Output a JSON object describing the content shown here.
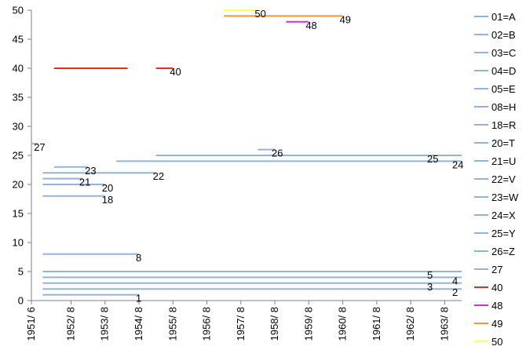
{
  "chart_data": {
    "type": "line",
    "x_ticks": [
      "1951/ 6",
      "1952/ 8",
      "1953/ 8",
      "1954/ 8",
      "1955/ 8",
      "1956/ 8",
      "1957/ 8",
      "1958/ 8",
      "1959/ 8",
      "1960/ 8",
      "1961/ 8",
      "1962/ 8",
      "1963/ 8"
    ],
    "x_range": [
      "1951-06",
      "1964-02"
    ],
    "ylim": [
      0,
      50
    ],
    "y_ticks": [
      0,
      5,
      10,
      15,
      20,
      25,
      30,
      35,
      40,
      45,
      50
    ],
    "grid": false,
    "legend_position": "right",
    "colors": {
      "default": "#95b3d7",
      "40": "#e0301e",
      "48": "#cc33cc",
      "49": "#f0963c",
      "50": "#ffff66"
    },
    "series": [
      {
        "name": "01=A",
        "legend": true,
        "label": "1",
        "y": 1,
        "segments": [
          [
            "1951-10",
            "1954-08"
          ]
        ]
      },
      {
        "name": "02=B",
        "legend": true,
        "label": "2",
        "y": 2,
        "segments": [
          [
            "1951-10",
            "1964-02"
          ]
        ]
      },
      {
        "name": "03=C",
        "legend": true,
        "label": "3",
        "y": 3,
        "segments": [
          [
            "1951-10",
            "1964-02"
          ]
        ]
      },
      {
        "name": "04=D",
        "legend": true,
        "label": "4",
        "y": 4,
        "segments": [
          [
            "1951-10",
            "1964-02"
          ]
        ]
      },
      {
        "name": "05=E",
        "legend": true,
        "label": "5",
        "y": 5,
        "segments": [
          [
            "1951-10",
            "1964-02"
          ]
        ]
      },
      {
        "name": "08=H",
        "legend": true,
        "label": "8",
        "y": 8,
        "segments": [
          [
            "1951-10",
            "1954-08"
          ]
        ]
      },
      {
        "name": "18=R",
        "legend": true,
        "label": "18",
        "y": 18,
        "segments": [
          [
            "1951-10",
            "1953-08"
          ]
        ]
      },
      {
        "name": "20=T",
        "legend": true,
        "label": "20",
        "y": 20,
        "segments": [
          [
            "1951-10",
            "1953-08"
          ]
        ]
      },
      {
        "name": "21=U",
        "legend": true,
        "label": "21",
        "y": 21,
        "segments": [
          [
            "1951-10",
            "1952-12"
          ]
        ]
      },
      {
        "name": "22=V",
        "legend": true,
        "label": "22",
        "y": 22,
        "segments": [
          [
            "1951-10",
            "1955-02"
          ]
        ]
      },
      {
        "name": "23=W",
        "legend": true,
        "label": "23",
        "y": 23,
        "segments": [
          [
            "1952-02",
            "1953-02"
          ]
        ]
      },
      {
        "name": "24=X",
        "legend": true,
        "label": "24",
        "y": 24,
        "segments": [
          [
            "1953-12",
            "1964-02"
          ]
        ]
      },
      {
        "name": "25=Y",
        "legend": true,
        "label": "25",
        "y": 25,
        "segments": [
          [
            "1955-02",
            "1964-02"
          ]
        ]
      },
      {
        "name": "26=Z",
        "legend": true,
        "label": "26",
        "y": 26,
        "segments": [
          [
            "1958-02",
            "1958-08"
          ]
        ]
      },
      {
        "name": "27",
        "legend": true,
        "label": "27",
        "y": 27,
        "segments": [
          [
            "1951-06",
            "1951-08"
          ]
        ]
      },
      {
        "name": "40",
        "legend": true,
        "label": "40",
        "y": 40,
        "segments": [
          [
            "1952-02",
            "1954-04"
          ],
          [
            "1955-02",
            "1955-08"
          ]
        ]
      },
      {
        "name": "48",
        "legend": true,
        "label": "48",
        "y": 48,
        "segments": [
          [
            "1958-12",
            "1959-08"
          ]
        ]
      },
      {
        "name": "49",
        "legend": true,
        "label": "49",
        "y": 49,
        "segments": [
          [
            "1957-02",
            "1960-08"
          ]
        ]
      },
      {
        "name": "50",
        "legend": true,
        "label": "50",
        "y": 50,
        "segments": [
          [
            "1957-02",
            "1958-02"
          ]
        ]
      }
    ]
  }
}
